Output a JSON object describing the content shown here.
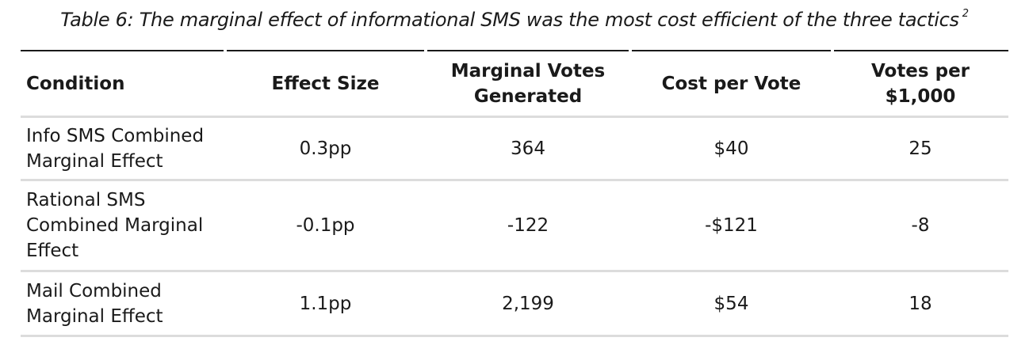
{
  "caption": {
    "text": "Table 6: The marginal effect of informational SMS was the most cost efficient of the three tactics",
    "footnote": "2"
  },
  "table": {
    "headers": [
      "Condition",
      "Effect Size",
      "Marginal Votes Generated",
      "Cost per Vote",
      "Votes per $1,000"
    ],
    "rows": [
      [
        "Info SMS Combined Marginal Effect",
        "0.3pp",
        "364",
        "$40",
        "25"
      ],
      [
        "Rational SMS Combined Marginal Effect",
        "-0.1pp",
        "-122",
        "-$121",
        "-8"
      ],
      [
        "Mail Combined Marginal Effect",
        "1.1pp",
        "2,199",
        "$54",
        "18"
      ]
    ]
  },
  "colors": {
    "text": "#1a1a1a",
    "top_rule": "#1a1a1a",
    "row_rule": "#dcdcdc",
    "background": "#ffffff"
  }
}
